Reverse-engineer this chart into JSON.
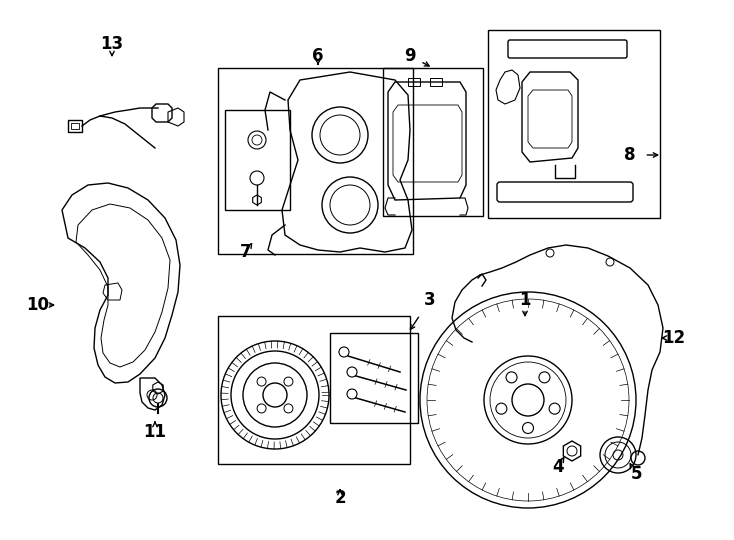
{
  "background_color": "#ffffff",
  "line_color": "#000000",
  "lw": 1.0,
  "fig_width": 7.34,
  "fig_height": 5.4,
  "dpi": 100,
  "labels": {
    "1": [
      525,
      302,
      525,
      318
    ],
    "2": [
      340,
      498,
      340,
      487
    ],
    "3": [
      430,
      302,
      430,
      312
    ],
    "4": [
      567,
      463,
      567,
      455
    ],
    "5": [
      618,
      474,
      618,
      462
    ],
    "6": [
      318,
      62,
      318,
      72
    ],
    "7": [
      248,
      248,
      260,
      238
    ],
    "8": [
      622,
      158,
      608,
      158
    ],
    "9": [
      408,
      62,
      408,
      72
    ],
    "10": [
      42,
      305,
      58,
      305
    ],
    "11": [
      155,
      430,
      155,
      416
    ],
    "12": [
      672,
      338,
      658,
      338
    ],
    "13": [
      112,
      46,
      112,
      60
    ]
  }
}
